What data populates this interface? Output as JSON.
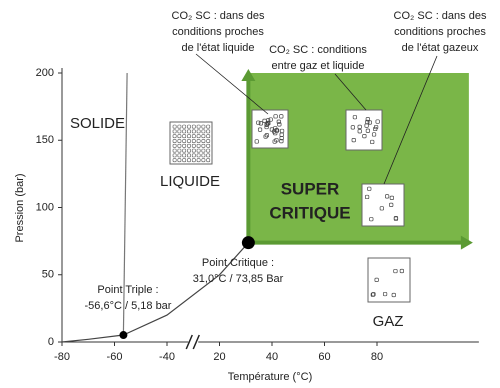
{
  "chart_data": {
    "type": "line",
    "x_label": "Température (°C)",
    "y_label": "Pression (bar)",
    "xlim": [
      -80,
      115
    ],
    "xticks": [
      -80,
      -60,
      -40,
      20,
      40,
      60,
      80
    ],
    "ylim": [
      0,
      200
    ],
    "yticks": [
      0,
      50,
      100,
      150,
      200
    ],
    "axis_break": true,
    "grid": false,
    "series": [
      {
        "color": "#777777",
        "x": [
          -56.6,
          -55.2
        ],
        "values": [
          5.18,
          200
        ]
      },
      {
        "color": "#444444",
        "x": [
          -80,
          -70,
          -56.6,
          -40,
          20,
          31
        ],
        "values": [
          0,
          2,
          5.18,
          20,
          50,
          73.85
        ]
      }
    ],
    "points": [
      {
        "name": "Point Triple :",
        "label": "-56,6°C / 5,18 bar",
        "x": -56.6,
        "y": 5.18
      },
      {
        "name": "Point Critique :",
        "label": "31,0°C / 73,85 Bar",
        "x": 31.0,
        "y": 73.85
      }
    ],
    "region_labels": [
      "SOLIDE",
      "LIQUIDE",
      "GAZ"
    ],
    "supercritical_label": [
      "SUPER",
      "CRITIQUE"
    ],
    "supercritical_color": "#7ab648",
    "callouts": [
      [
        "CO₂ SC : dans des",
        "conditions proches",
        "de l'état liquide"
      ],
      [
        "CO₂ SC : conditions",
        "entre gaz et liquide"
      ],
      [
        "CO₂ SC : dans des",
        "conditions proches",
        "de l'état gazeux"
      ]
    ]
  }
}
